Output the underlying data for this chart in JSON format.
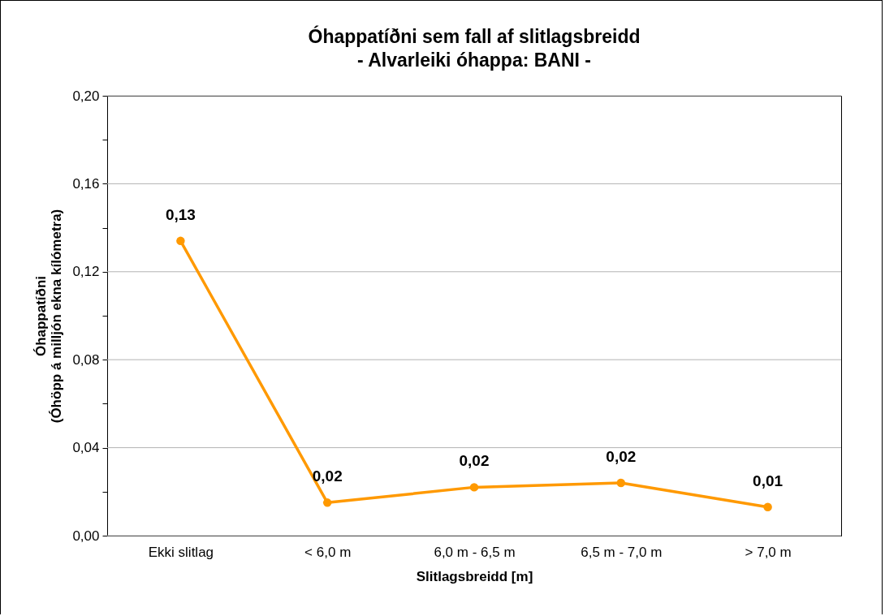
{
  "chart_data": {
    "type": "line",
    "title": "Óhappatíðni sem fall af slitlagsbreidd",
    "subtitle": "- Alvarleiki óhappa: BANI -",
    "xlabel": "Slitlagsbreidd [m]",
    "ylabel": "Óhappatíðni\n(Óhöpp á milljón ekna kílómetra)",
    "categories": [
      "Ekki slitlag",
      "< 6,0 m",
      "6,0 m - 6,5 m",
      "6,5 m - 7,0 m",
      "> 7,0 m"
    ],
    "series": [
      {
        "color": "#ff9900",
        "values": [
          0.134,
          0.015,
          0.022,
          0.024,
          0.013
        ],
        "value_labels": [
          "0,13",
          "0,02",
          "0,02",
          "0,02",
          "0,01"
        ]
      }
    ],
    "ylim": [
      0,
      0.2
    ],
    "yticks": [
      {
        "value": 0,
        "label": "0,00"
      },
      {
        "value": 0.02,
        "label": null
      },
      {
        "value": 0.04,
        "label": "0,04"
      },
      {
        "value": 0.06,
        "label": null
      },
      {
        "value": 0.08,
        "label": "0,08"
      },
      {
        "value": 0.1,
        "label": null
      },
      {
        "value": 0.12,
        "label": "0,12"
      },
      {
        "value": 0.14,
        "label": null
      },
      {
        "value": 0.16,
        "label": "0,16"
      },
      {
        "value": 0.18,
        "label": null
      },
      {
        "value": 0.2,
        "label": "0,20"
      }
    ],
    "grid": "y",
    "marker": "circle",
    "line_style": "solid"
  }
}
